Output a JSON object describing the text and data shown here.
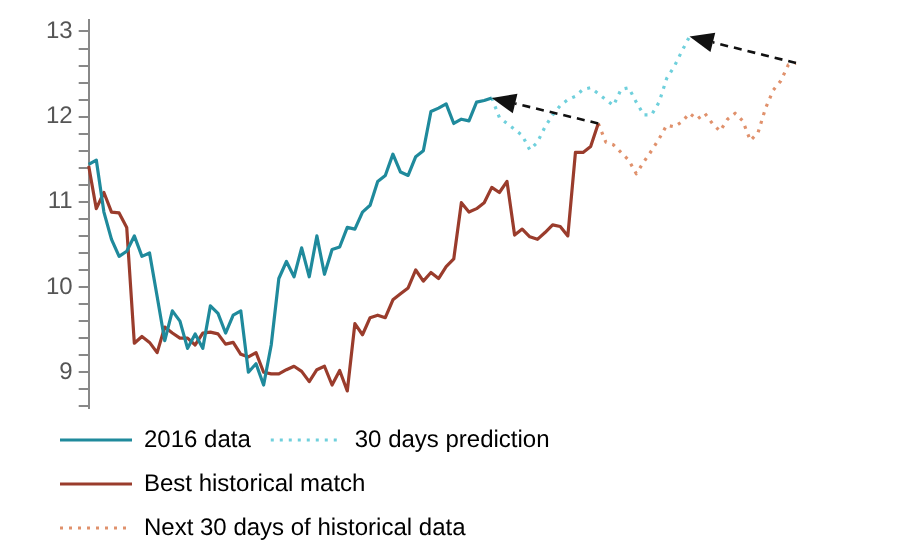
{
  "chart_data": {
    "type": "line",
    "categories": [
      null,
      null,
      null,
      null,
      null,
      null,
      null,
      null,
      null,
      null,
      null,
      null,
      null,
      null,
      null,
      null,
      null,
      null,
      null,
      null,
      null,
      null,
      null,
      null,
      null,
      null,
      null,
      null,
      null,
      null,
      null,
      null,
      null,
      null,
      null,
      null,
      null,
      null,
      null,
      null,
      null,
      null,
      null,
      null,
      null,
      null,
      null,
      null,
      null,
      null,
      null,
      null,
      null,
      null,
      null,
      null,
      null,
      null,
      null,
      null,
      null,
      null,
      null,
      null,
      null,
      null,
      null,
      null,
      null,
      null,
      null,
      null,
      null,
      null,
      null,
      null,
      null,
      null,
      null,
      null,
      null,
      null,
      null,
      null,
      null,
      null,
      null,
      null,
      null,
      null,
      null,
      null,
      null,
      null
    ],
    "ylim": [
      8.58,
      13.13
    ],
    "yticks": [
      {
        "value": 8.6,
        "label": null
      },
      {
        "value": 8.8,
        "label": null
      },
      9,
      {
        "value": 9.2,
        "label": null
      },
      {
        "value": 9.4,
        "label": null
      },
      {
        "value": 9.6,
        "label": null
      },
      {
        "value": 9.8,
        "label": null
      },
      10,
      {
        "value": 10.2,
        "label": null
      },
      {
        "value": 10.4,
        "label": null
      },
      {
        "value": 10.6,
        "label": null
      },
      {
        "value": 10.8,
        "label": null
      },
      11,
      {
        "value": 11.2,
        "label": null
      },
      {
        "value": 11.4,
        "label": null
      },
      {
        "value": 11.6,
        "label": null
      },
      {
        "value": 11.8,
        "label": null
      },
      12,
      {
        "value": 12.2,
        "label": null
      },
      {
        "value": 12.4,
        "label": null
      },
      {
        "value": 12.6,
        "label": null
      },
      {
        "value": 12.8,
        "label": null
      },
      13
    ],
    "tick_labels": "y",
    "grid": false,
    "legend": "bottom",
    "marker": "none",
    "series": [
      {
        "name": "2016 data",
        "color": "#1f8a9c",
        "line_style": "solid",
        "values": [
          11.44,
          11.49,
          10.88,
          10.56,
          10.36,
          10.42,
          10.6,
          10.36,
          10.4,
          9.89,
          9.37,
          9.72,
          9.6,
          9.28,
          9.45,
          9.28,
          9.78,
          9.69,
          9.46,
          9.67,
          9.72,
          9.0,
          9.1,
          8.85,
          9.32,
          10.1,
          10.3,
          10.12,
          10.46,
          10.12,
          10.6,
          10.15,
          10.44,
          10.47,
          10.7,
          10.68,
          10.88,
          10.96,
          11.24,
          11.31,
          11.56,
          11.35,
          11.31,
          11.53,
          11.6,
          12.06,
          12.1,
          12.15,
          11.92,
          11.97,
          11.95,
          12.17,
          12.19,
          12.22,
          null,
          null,
          null,
          null,
          null,
          null,
          null,
          null,
          null,
          null,
          null,
          null,
          null,
          null,
          null,
          null,
          null,
          null,
          null,
          null,
          null,
          null,
          null,
          null,
          null,
          null,
          null,
          null,
          null,
          null,
          null,
          null,
          null,
          null,
          null,
          null,
          null,
          null,
          null,
          null
        ]
      },
      {
        "name": "30 days prediction",
        "color": "#6fd0dc",
        "line_style": "dotted",
        "values": [
          null,
          null,
          null,
          null,
          null,
          null,
          null,
          null,
          null,
          null,
          null,
          null,
          null,
          null,
          null,
          null,
          null,
          null,
          null,
          null,
          null,
          null,
          null,
          null,
          null,
          null,
          null,
          null,
          null,
          null,
          null,
          null,
          null,
          null,
          null,
          null,
          null,
          null,
          null,
          null,
          null,
          null,
          null,
          null,
          null,
          null,
          null,
          null,
          null,
          null,
          null,
          null,
          null,
          12.22,
          11.99,
          11.92,
          11.85,
          11.78,
          11.61,
          11.7,
          11.88,
          12.02,
          12.13,
          12.2,
          12.24,
          12.32,
          12.34,
          12.27,
          12.2,
          12.13,
          12.32,
          12.34,
          12.17,
          12.02,
          12.02,
          12.17,
          12.45,
          12.59,
          12.77,
          12.94,
          null,
          null,
          null,
          null,
          null,
          null,
          null,
          null,
          null,
          null,
          null,
          null,
          null,
          null
        ]
      },
      {
        "name": "Best historical match",
        "color": "#9a3c2c",
        "line_style": "solid",
        "values": [
          11.42,
          10.92,
          11.11,
          10.88,
          10.87,
          10.7,
          9.34,
          9.42,
          9.35,
          9.23,
          9.53,
          9.46,
          9.4,
          9.4,
          9.32,
          9.46,
          9.47,
          9.45,
          9.33,
          9.35,
          9.21,
          9.18,
          9.23,
          9.0,
          8.98,
          8.98,
          9.03,
          9.07,
          9.01,
          8.89,
          9.03,
          9.07,
          8.85,
          9.02,
          8.78,
          9.57,
          9.44,
          9.64,
          9.67,
          9.64,
          9.85,
          9.92,
          9.99,
          10.2,
          10.07,
          10.17,
          10.1,
          10.24,
          10.33,
          10.99,
          10.88,
          10.92,
          10.99,
          11.17,
          11.11,
          11.24,
          10.61,
          10.68,
          10.59,
          10.56,
          10.64,
          10.73,
          10.71,
          10.6,
          11.58,
          11.58,
          11.65,
          11.92,
          null,
          null,
          null,
          null,
          null,
          null,
          null,
          null,
          null,
          null,
          null,
          null,
          null,
          null,
          null,
          null,
          null,
          null,
          null,
          null,
          null,
          null,
          null,
          null,
          null,
          null
        ]
      },
      {
        "name": "Next 30 days of historical data",
        "color": "#e0916c",
        "line_style": "dotted",
        "values": [
          null,
          null,
          null,
          null,
          null,
          null,
          null,
          null,
          null,
          null,
          null,
          null,
          null,
          null,
          null,
          null,
          null,
          null,
          null,
          null,
          null,
          null,
          null,
          null,
          null,
          null,
          null,
          null,
          null,
          null,
          null,
          null,
          null,
          null,
          null,
          null,
          null,
          null,
          null,
          null,
          null,
          null,
          null,
          null,
          null,
          null,
          null,
          null,
          null,
          null,
          null,
          null,
          null,
          null,
          null,
          null,
          null,
          null,
          null,
          null,
          null,
          null,
          null,
          null,
          null,
          null,
          null,
          11.92,
          11.7,
          11.67,
          11.58,
          11.49,
          11.33,
          11.47,
          11.6,
          11.74,
          11.9,
          11.88,
          11.94,
          12.04,
          11.97,
          12.04,
          11.92,
          11.83,
          11.97,
          12.04,
          11.95,
          11.72,
          11.81,
          12.1,
          12.31,
          12.42,
          12.61,
          12.63
        ]
      }
    ]
  }
}
